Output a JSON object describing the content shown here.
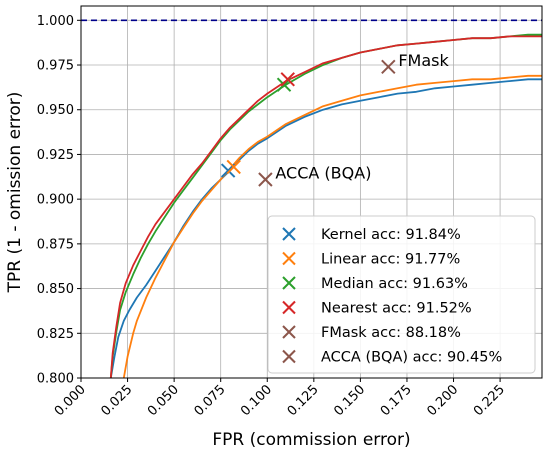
{
  "chart_data": {
    "type": "line",
    "title": "",
    "xlabel": "FPR (commission error)",
    "ylabel": "TPR (1 - omission error)",
    "xlim": [
      0.0,
      0.2475
    ],
    "ylim": [
      0.8,
      1.008
    ],
    "grid": true,
    "xticks": [
      "0.000",
      "0.025",
      "0.050",
      "0.075",
      "0.100",
      "0.125",
      "0.150",
      "0.175",
      "0.200",
      "0.225"
    ],
    "yticks": [
      "0.800",
      "0.825",
      "0.850",
      "0.875",
      "0.900",
      "0.925",
      "0.950",
      "0.975",
      "1.000"
    ],
    "reference_line": {
      "y": 1.0,
      "color": "#00008b",
      "style": "dashed"
    },
    "series": [
      {
        "name": "Kernel",
        "color": "#1f77b4",
        "x": [
          0.016,
          0.018,
          0.02,
          0.023,
          0.026,
          0.03,
          0.035,
          0.04,
          0.045,
          0.05,
          0.055,
          0.06,
          0.065,
          0.07,
          0.075,
          0.08,
          0.085,
          0.09,
          0.095,
          0.1,
          0.11,
          0.12,
          0.13,
          0.14,
          0.15,
          0.16,
          0.17,
          0.18,
          0.19,
          0.2,
          0.21,
          0.22,
          0.23,
          0.24,
          0.2475
        ],
        "y": [
          0.8,
          0.812,
          0.823,
          0.832,
          0.838,
          0.845,
          0.852,
          0.86,
          0.868,
          0.876,
          0.885,
          0.893,
          0.9,
          0.906,
          0.911,
          0.916,
          0.922,
          0.927,
          0.931,
          0.934,
          0.941,
          0.946,
          0.95,
          0.953,
          0.955,
          0.957,
          0.959,
          0.96,
          0.962,
          0.963,
          0.964,
          0.965,
          0.966,
          0.967,
          0.967
        ]
      },
      {
        "name": "Linear",
        "color": "#ff7f0e",
        "x": [
          0.023,
          0.025,
          0.028,
          0.03,
          0.035,
          0.04,
          0.045,
          0.05,
          0.055,
          0.06,
          0.065,
          0.07,
          0.075,
          0.08,
          0.085,
          0.09,
          0.095,
          0.1,
          0.11,
          0.12,
          0.13,
          0.14,
          0.15,
          0.16,
          0.17,
          0.18,
          0.19,
          0.2,
          0.21,
          0.22,
          0.23,
          0.24,
          0.2475
        ],
        "y": [
          0.8,
          0.812,
          0.825,
          0.832,
          0.845,
          0.856,
          0.866,
          0.876,
          0.884,
          0.892,
          0.899,
          0.905,
          0.911,
          0.917,
          0.923,
          0.928,
          0.932,
          0.935,
          0.942,
          0.947,
          0.952,
          0.955,
          0.958,
          0.96,
          0.962,
          0.964,
          0.965,
          0.966,
          0.967,
          0.967,
          0.968,
          0.969,
          0.969
        ]
      },
      {
        "name": "Median",
        "color": "#2ca02c",
        "x": [
          0.016,
          0.017,
          0.019,
          0.021,
          0.024,
          0.028,
          0.032,
          0.036,
          0.04,
          0.045,
          0.05,
          0.055,
          0.06,
          0.065,
          0.07,
          0.075,
          0.08,
          0.085,
          0.09,
          0.095,
          0.1,
          0.11,
          0.12,
          0.13,
          0.14,
          0.15,
          0.16,
          0.17,
          0.18,
          0.19,
          0.2,
          0.21,
          0.22,
          0.23,
          0.24,
          0.2475
        ],
        "y": [
          0.8,
          0.812,
          0.826,
          0.838,
          0.848,
          0.858,
          0.867,
          0.875,
          0.882,
          0.89,
          0.898,
          0.905,
          0.912,
          0.919,
          0.926,
          0.933,
          0.939,
          0.944,
          0.949,
          0.953,
          0.957,
          0.964,
          0.97,
          0.975,
          0.979,
          0.982,
          0.984,
          0.986,
          0.987,
          0.988,
          0.989,
          0.99,
          0.99,
          0.991,
          0.992,
          0.992
        ]
      },
      {
        "name": "Nearest",
        "color": "#d62728",
        "x": [
          0.016,
          0.017,
          0.019,
          0.021,
          0.024,
          0.028,
          0.032,
          0.036,
          0.04,
          0.045,
          0.05,
          0.055,
          0.06,
          0.065,
          0.07,
          0.075,
          0.08,
          0.085,
          0.09,
          0.095,
          0.1,
          0.11,
          0.12,
          0.13,
          0.14,
          0.15,
          0.16,
          0.17,
          0.18,
          0.19,
          0.2,
          0.21,
          0.22,
          0.23,
          0.24,
          0.2475
        ],
        "y": [
          0.8,
          0.814,
          0.829,
          0.842,
          0.853,
          0.863,
          0.871,
          0.879,
          0.886,
          0.893,
          0.9,
          0.907,
          0.914,
          0.92,
          0.927,
          0.934,
          0.94,
          0.945,
          0.95,
          0.955,
          0.959,
          0.966,
          0.971,
          0.976,
          0.979,
          0.982,
          0.984,
          0.986,
          0.987,
          0.988,
          0.989,
          0.99,
          0.99,
          0.991,
          0.991,
          0.991
        ]
      }
    ],
    "markers": [
      {
        "name": "Kernel",
        "x": 0.079,
        "y": 0.916,
        "color": "#1f77b4"
      },
      {
        "name": "Linear",
        "x": 0.082,
        "y": 0.918,
        "color": "#ff7f0e"
      },
      {
        "name": "Median",
        "x": 0.109,
        "y": 0.964,
        "color": "#2ca02c"
      },
      {
        "name": "Nearest",
        "x": 0.111,
        "y": 0.967,
        "color": "#d62728"
      },
      {
        "name": "FMask",
        "x": 0.165,
        "y": 0.974,
        "color": "#8c564b"
      },
      {
        "name": "ACCA (BQA)",
        "x": 0.099,
        "y": 0.911,
        "color": "#8c564b"
      }
    ],
    "annotations": [
      {
        "text": "FMask",
        "x": 0.165,
        "y": 0.974
      },
      {
        "text": "ACCA (BQA)",
        "x": 0.099,
        "y": 0.911
      }
    ],
    "legend": {
      "position": "lower-right",
      "entries": [
        {
          "label": "Kernel  acc: 91.84%",
          "color": "#1f77b4"
        },
        {
          "label": "Linear  acc: 91.77%",
          "color": "#ff7f0e"
        },
        {
          "label": "Median  acc: 91.63%",
          "color": "#2ca02c"
        },
        {
          "label": "Nearest  acc: 91.52%",
          "color": "#d62728"
        },
        {
          "label": "FMask acc: 88.18%",
          "color": "#8c564b"
        },
        {
          "label": "ACCA (BQA) acc: 90.45%",
          "color": "#8c564b"
        }
      ]
    }
  }
}
